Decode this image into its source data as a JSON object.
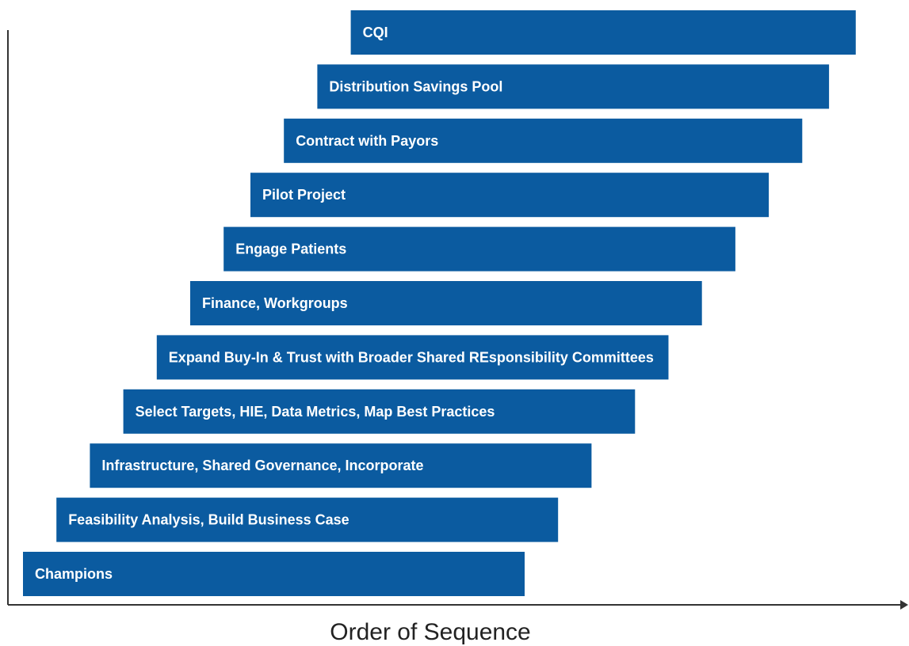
{
  "chart_data": {
    "type": "bar",
    "orientation": "horizontal",
    "title": "",
    "xlabel": "Order of Sequence",
    "ylabel": "",
    "grid": false,
    "legend": "none",
    "bar_color": "#0b5ba0",
    "axis_color": "#333333",
    "bars": [
      {
        "label": "Champions",
        "start": 0,
        "end": 15
      },
      {
        "label": "Feasibility Analysis, Build Business Case",
        "start": 1,
        "end": 16
      },
      {
        "label": "Infrastructure, Shared Governance, Incorporate",
        "start": 2,
        "end": 17
      },
      {
        "label": "Select Targets, HIE, Data Metrics, Map Best Practices",
        "start": 3,
        "end": 18.3
      },
      {
        "label": "Expand Buy-In & Trust with Broader Shared REsponsibility Committees",
        "start": 4,
        "end": 19.3
      },
      {
        "label": "Finance, Workgroups",
        "start": 5,
        "end": 20.3
      },
      {
        "label": "Engage Patients",
        "start": 6,
        "end": 21.3
      },
      {
        "label": "Pilot Project",
        "start": 6.8,
        "end": 22.3
      },
      {
        "label": "Contract with Payors",
        "start": 7.8,
        "end": 23.3
      },
      {
        "label": "Distribution Savings Pool",
        "start": 8.8,
        "end": 24.1
      },
      {
        "label": "CQI",
        "start": 9.8,
        "end": 24.9
      }
    ]
  }
}
